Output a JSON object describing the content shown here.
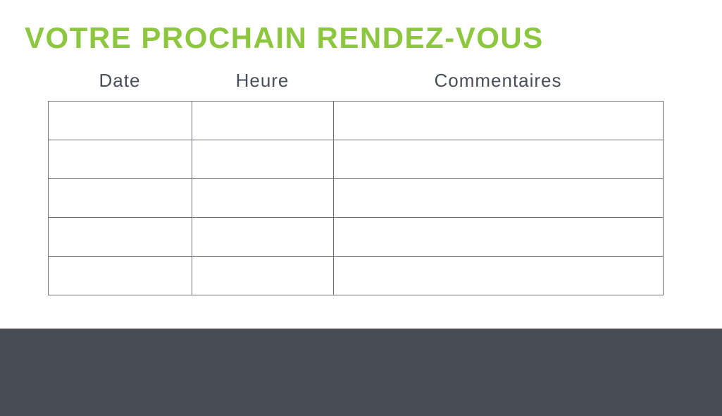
{
  "page": {
    "title": "VOTRE PROCHAIN RENDEZ-VOUS"
  },
  "colors": {
    "accent_green": "#8DC63F",
    "footer_dark": "#474B54",
    "table_border_gray": "#6A6E75",
    "header_text_gray": "#4A4E58"
  },
  "table": {
    "columns": [
      {
        "label": "Date"
      },
      {
        "label": "Heure"
      },
      {
        "label": "Commentaires"
      }
    ],
    "rows": [
      [
        "",
        "",
        ""
      ],
      [
        "",
        "",
        ""
      ],
      [
        "",
        "",
        ""
      ],
      [
        "",
        "",
        ""
      ],
      [
        "",
        "",
        ""
      ]
    ]
  }
}
